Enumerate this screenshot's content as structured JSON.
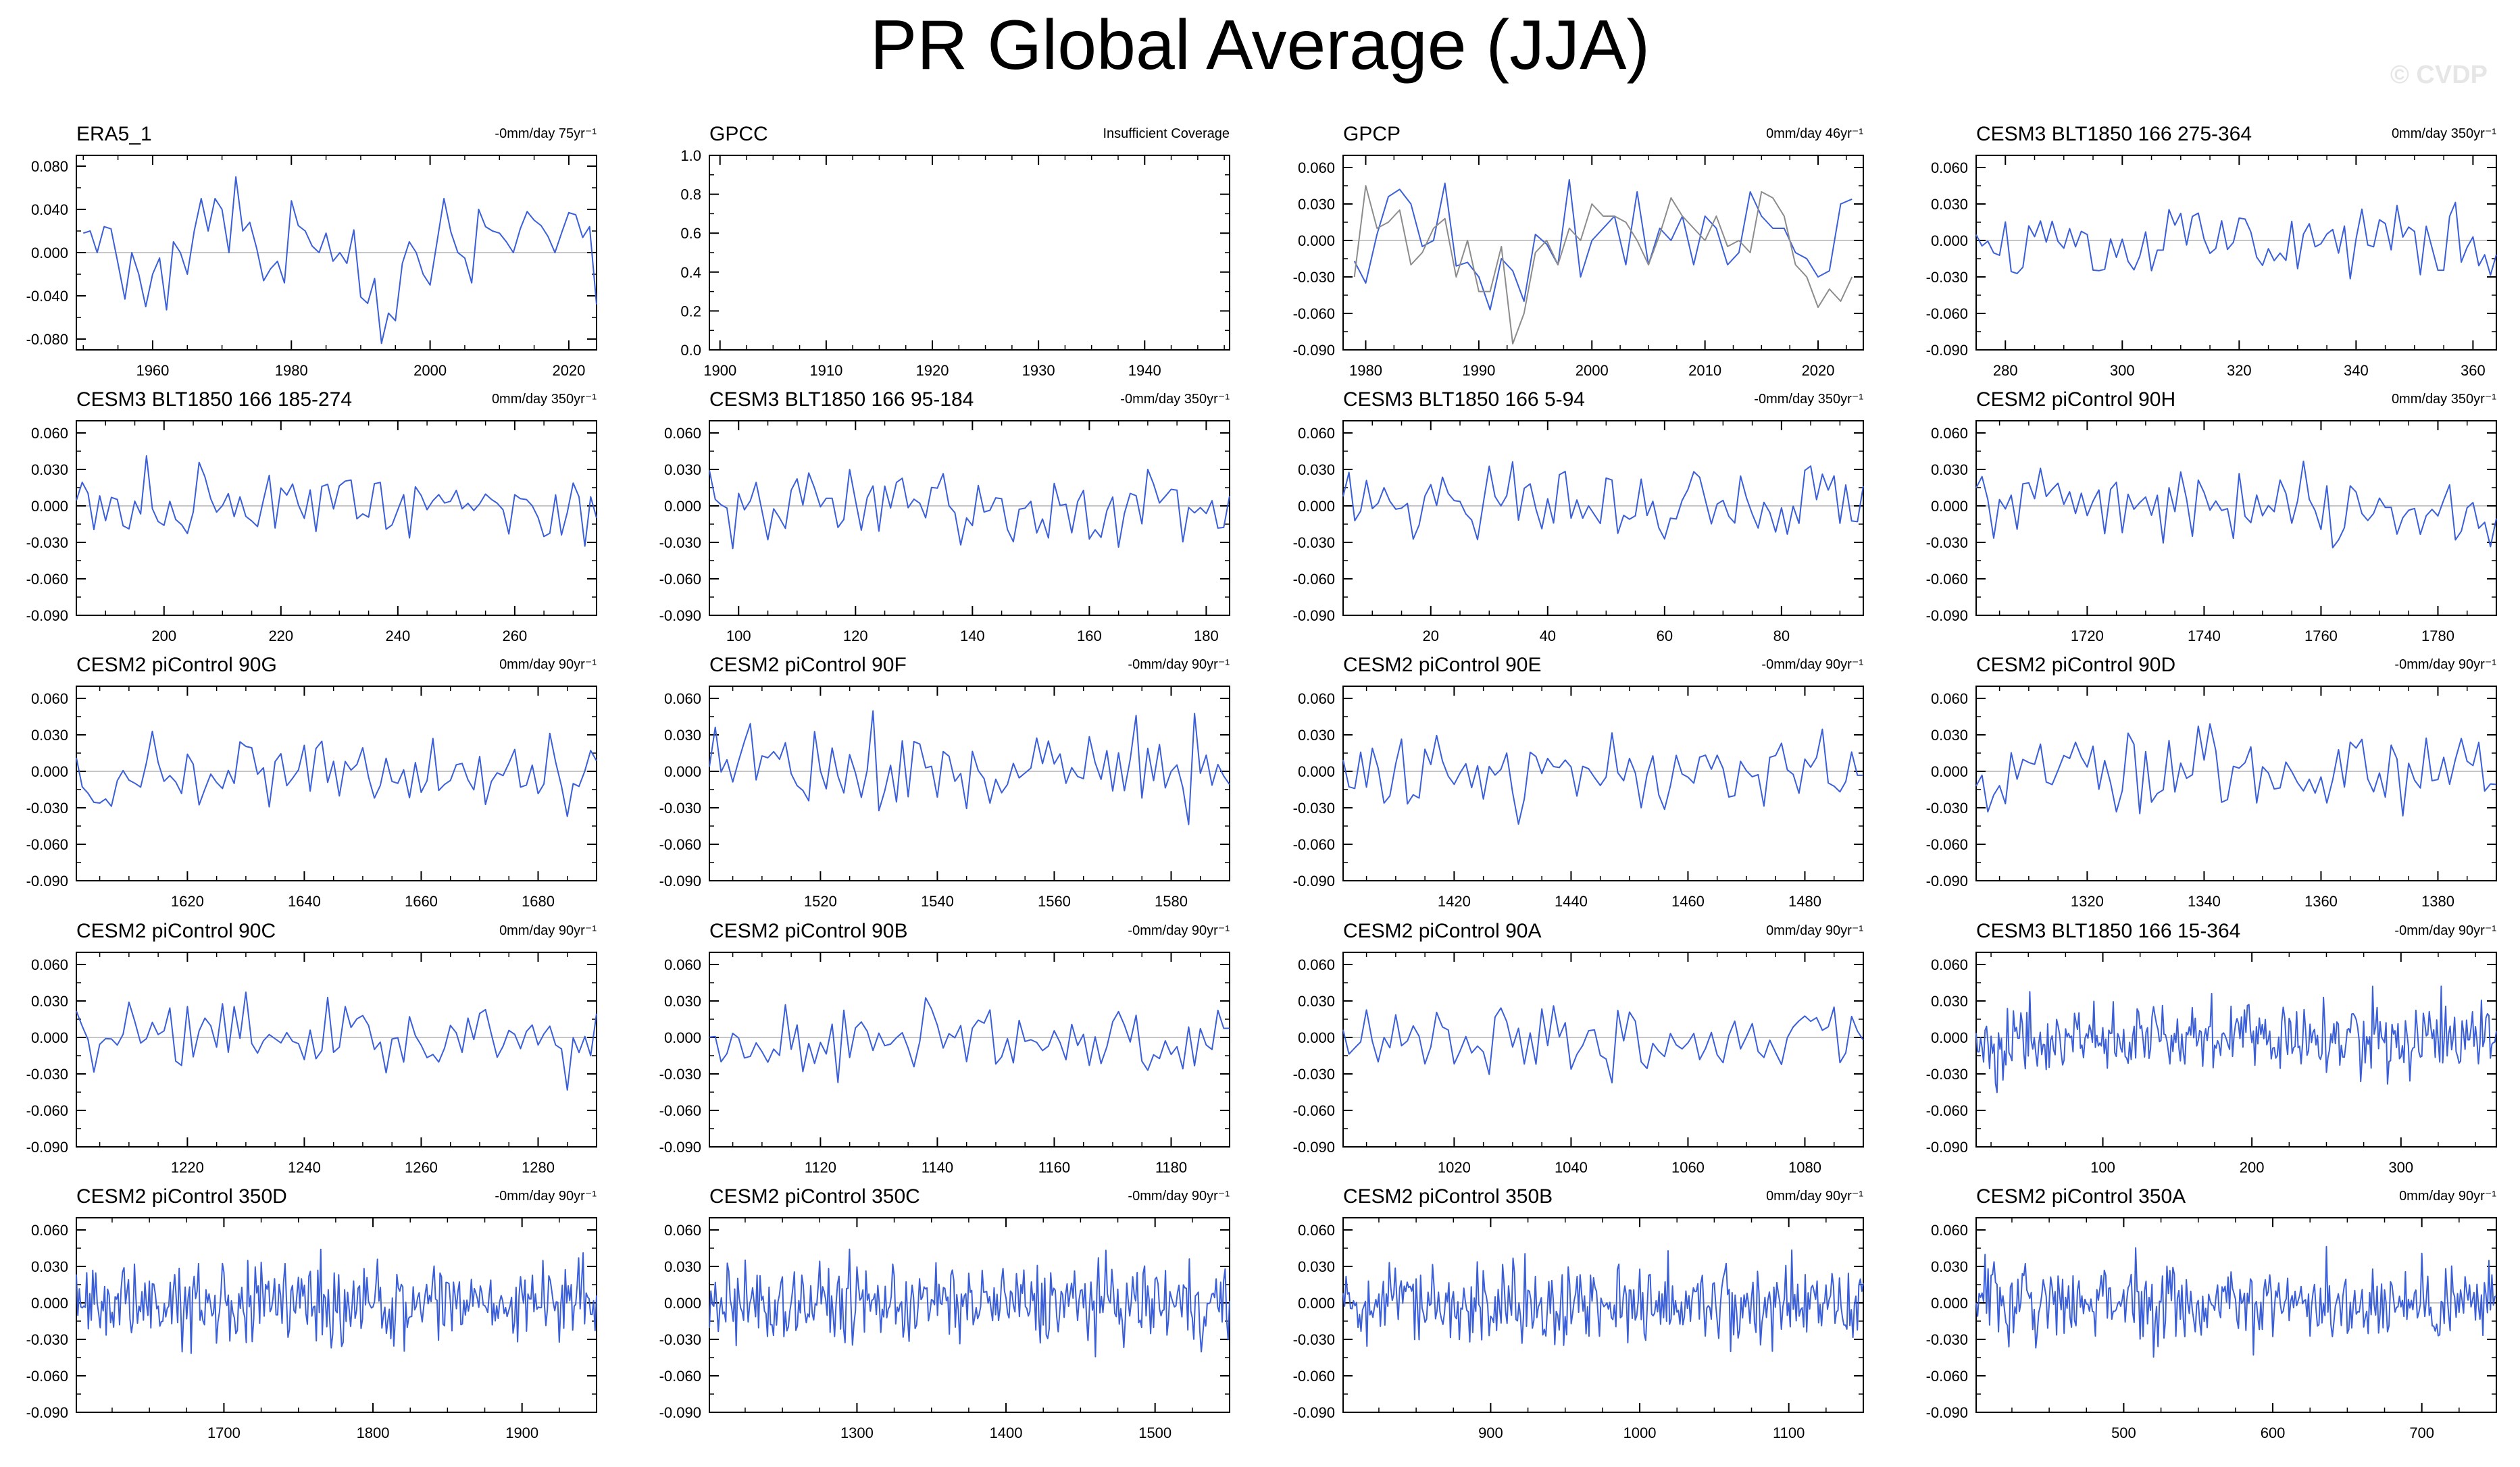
{
  "title": "PR Global Average (JJA)",
  "watermark": "© CVDP",
  "colors": {
    "series": "#3a5fd9",
    "obs2": "#8c8c8c",
    "zero": "#b4b4b4"
  },
  "chart_data": [
    {
      "type": "line",
      "name": "ERA5_1",
      "trend": "-0mm/day 75yr⁻¹",
      "x_range": [
        1949,
        2024
      ],
      "xticks": [
        1960,
        1980,
        2000,
        2020
      ],
      "ylim": [
        -0.09,
        0.09
      ],
      "yticks": [
        -0.08,
        -0.04,
        0.0,
        0.04,
        0.08
      ],
      "ytick_labels": [
        "-0.080",
        "-0.040",
        "0.000",
        "0.040",
        "0.080"
      ],
      "series": [
        {
          "x_start": 1950,
          "x_step": 1,
          "values": [
            0.018,
            0.02,
            0.0,
            0.024,
            0.022,
            -0.01,
            -0.043,
            0.0,
            -0.02,
            -0.05,
            -0.02,
            -0.005,
            -0.053,
            0.01,
            0.0,
            -0.02,
            0.02,
            0.05,
            0.02,
            0.05,
            0.04,
            0.0,
            0.07,
            0.02,
            0.028,
            0.004,
            -0.026,
            -0.015,
            -0.008,
            -0.028,
            0.048,
            0.025,
            0.02,
            0.006,
            0.0,
            0.018,
            -0.008,
            0.0,
            -0.01,
            0.021,
            -0.041,
            -0.047,
            -0.024,
            -0.084,
            -0.056,
            -0.063,
            -0.01,
            0.01,
            0.0,
            -0.02,
            -0.03,
            0.01,
            0.05,
            0.019,
            0.0,
            -0.005,
            -0.028,
            0.04,
            0.024,
            0.02,
            0.018,
            0.01,
            0.0,
            0.022,
            0.038,
            0.03,
            0.025,
            0.015,
            0.0,
            0.019,
            0.037,
            0.035,
            0.014,
            0.024,
            -0.048
          ]
        }
      ]
    },
    {
      "type": "line",
      "name": "GPCC",
      "trend": "Insufficient Coverage",
      "x_range": [
        1899,
        1948
      ],
      "xticks": [
        1900,
        1910,
        1920,
        1930,
        1940
      ],
      "ylim": [
        0,
        1
      ],
      "yticks": [
        0,
        0.2,
        0.4,
        0.6,
        0.8,
        1.0
      ],
      "ytick_labels": [
        "0.0",
        "0.2",
        "0.4",
        "0.6",
        "0.8",
        "1.0"
      ],
      "series": []
    },
    {
      "type": "line",
      "name": "GPCP",
      "trend": "0mm/day 46yr⁻¹",
      "x_range": [
        1978,
        2024
      ],
      "xticks": [
        1980,
        1990,
        2000,
        2010,
        2020
      ],
      "ylim": [
        -0.09,
        0.07
      ],
      "yticks": [
        -0.09,
        -0.06,
        -0.03,
        0.0,
        0.03,
        0.06
      ],
      "ytick_labels": [
        "-0.090",
        "-0.060",
        "-0.030",
        "0.000",
        "0.030",
        "0.060"
      ],
      "series": [
        {
          "x_start": 1979,
          "x_step": 1,
          "values": [
            -0.017,
            -0.035,
            0.005,
            0.036,
            0.042,
            0.03,
            -0.005,
            0.0,
            0.047,
            -0.021,
            -0.018,
            -0.03,
            -0.057,
            -0.015,
            -0.025,
            -0.05,
            0.005,
            -0.003,
            -0.02,
            0.05,
            -0.03,
            0.0,
            0.01,
            0.02,
            -0.02,
            0.04,
            -0.02,
            0.01,
            0.0,
            0.02,
            -0.02,
            0.02,
            0.01,
            -0.02,
            -0.01,
            0.04,
            0.02,
            0.01,
            0.01,
            -0.01,
            -0.015,
            -0.03,
            -0.025,
            0.03,
            0.034
          ]
        },
        {
          "x_start": 1979,
          "x_step": 1,
          "values": [
            -0.03,
            0.045,
            0.01,
            0.015,
            0.025,
            -0.02,
            -0.01,
            0.01,
            0.018,
            -0.03,
            0.0,
            -0.042,
            -0.042,
            -0.005,
            -0.085,
            -0.06,
            -0.01,
            0.0,
            -0.02,
            0.01,
            0.0,
            0.03,
            0.02,
            0.02,
            0.015,
            0.0,
            -0.02,
            0.005,
            0.035,
            0.02,
            0.01,
            0.0,
            0.02,
            -0.005,
            0.0,
            -0.01,
            0.04,
            0.035,
            0.02,
            -0.02,
            -0.03,
            -0.055,
            -0.04,
            -0.05,
            -0.03
          ]
        }
      ]
    },
    {
      "type": "line",
      "name": "CESM3 BLT1850 166 275-364",
      "trend": "0mm/day 350yr⁻¹",
      "x_range": [
        275,
        364
      ],
      "xticks": [
        280,
        300,
        320,
        340,
        360
      ],
      "ylim": [
        -0.09,
        0.07
      ],
      "yticks": [
        -0.09,
        -0.06,
        -0.03,
        0.0,
        0.03,
        0.06
      ],
      "ytick_labels": [
        "-0.090",
        "-0.060",
        "-0.030",
        "0.000",
        "0.030",
        "0.060"
      ],
      "series": [
        {
          "x_start": 275,
          "x_step": 1,
          "n": 90,
          "seed": 4,
          "amp": 0.016
        }
      ]
    },
    {
      "type": "line",
      "name": "CESM3 BLT1850 166 185-274",
      "trend": "0mm/day 350yr⁻¹",
      "x_range": [
        185,
        274
      ],
      "xticks": [
        200,
        220,
        240,
        260
      ],
      "ylim": [
        -0.09,
        0.07
      ],
      "yticks": [
        -0.09,
        -0.06,
        -0.03,
        0.0,
        0.03,
        0.06
      ],
      "ytick_labels": [
        "-0.090",
        "-0.060",
        "-0.030",
        "0.000",
        "0.030",
        "0.060"
      ],
      "series": [
        {
          "x_start": 185,
          "x_step": 1,
          "n": 90,
          "seed": 5,
          "amp": 0.016
        }
      ]
    },
    {
      "type": "line",
      "name": "CESM3 BLT1850 166 95-184",
      "trend": "-0mm/day 350yr⁻¹",
      "x_range": [
        95,
        184
      ],
      "xticks": [
        100,
        120,
        140,
        160,
        180
      ],
      "ylim": [
        -0.09,
        0.07
      ],
      "yticks": [
        -0.09,
        -0.06,
        -0.03,
        0.0,
        0.03,
        0.06
      ],
      "ytick_labels": [
        "-0.090",
        "-0.060",
        "-0.030",
        "0.000",
        "0.030",
        "0.060"
      ],
      "series": [
        {
          "x_start": 95,
          "x_step": 1,
          "n": 90,
          "seed": 6,
          "amp": 0.016
        }
      ]
    },
    {
      "type": "line",
      "name": "CESM3 BLT1850 166 5-94",
      "trend": "-0mm/day 350yr⁻¹",
      "x_range": [
        5,
        94
      ],
      "xticks": [
        20,
        40,
        60,
        80
      ],
      "ylim": [
        -0.09,
        0.07
      ],
      "yticks": [
        -0.09,
        -0.06,
        -0.03,
        0.0,
        0.03,
        0.06
      ],
      "ytick_labels": [
        "-0.090",
        "-0.060",
        "-0.030",
        "0.000",
        "0.030",
        "0.060"
      ],
      "series": [
        {
          "x_start": 5,
          "x_step": 1,
          "n": 90,
          "seed": 7,
          "amp": 0.016
        }
      ]
    },
    {
      "type": "line",
      "name": "CESM2 piControl 90H",
      "trend": "0mm/day 350yr⁻¹",
      "x_range": [
        1701,
        1790
      ],
      "xticks": [
        1720,
        1740,
        1760,
        1780
      ],
      "ylim": [
        -0.09,
        0.07
      ],
      "yticks": [
        -0.09,
        -0.06,
        -0.03,
        0.0,
        0.03,
        0.06
      ],
      "ytick_labels": [
        "-0.090",
        "-0.060",
        "-0.030",
        "0.000",
        "0.030",
        "0.060"
      ],
      "series": [
        {
          "x_start": 1701,
          "x_step": 1,
          "n": 90,
          "seed": 8,
          "amp": 0.017
        }
      ]
    },
    {
      "type": "line",
      "name": "CESM2 piControl 90G",
      "trend": "0mm/day 90yr⁻¹",
      "x_range": [
        1601,
        1690
      ],
      "xticks": [
        1620,
        1640,
        1660,
        1680
      ],
      "ylim": [
        -0.09,
        0.07
      ],
      "yticks": [
        -0.09,
        -0.06,
        -0.03,
        0.0,
        0.03,
        0.06
      ],
      "ytick_labels": [
        "-0.090",
        "-0.060",
        "-0.030",
        "0.000",
        "0.030",
        "0.060"
      ],
      "series": [
        {
          "x_start": 1601,
          "x_step": 1,
          "n": 90,
          "seed": 9,
          "amp": 0.016
        }
      ]
    },
    {
      "type": "line",
      "name": "CESM2 piControl 90F",
      "trend": "-0mm/day 90yr⁻¹",
      "x_range": [
        1501,
        1590
      ],
      "xticks": [
        1520,
        1540,
        1560,
        1580
      ],
      "ylim": [
        -0.09,
        0.07
      ],
      "yticks": [
        -0.09,
        -0.06,
        -0.03,
        0.0,
        0.03,
        0.06
      ],
      "ytick_labels": [
        "-0.090",
        "-0.060",
        "-0.030",
        "0.000",
        "0.030",
        "0.060"
      ],
      "series": [
        {
          "x_start": 1501,
          "x_step": 1,
          "n": 90,
          "seed": 10,
          "amp": 0.017
        }
      ]
    },
    {
      "type": "line",
      "name": "CESM2 piControl 90E",
      "trend": "-0mm/day 90yr⁻¹",
      "x_range": [
        1401,
        1490
      ],
      "xticks": [
        1420,
        1440,
        1460,
        1480
      ],
      "ylim": [
        -0.09,
        0.07
      ],
      "yticks": [
        -0.09,
        -0.06,
        -0.03,
        0.0,
        0.03,
        0.06
      ],
      "ytick_labels": [
        "-0.090",
        "-0.060",
        "-0.030",
        "0.000",
        "0.030",
        "0.060"
      ],
      "series": [
        {
          "x_start": 1401,
          "x_step": 1,
          "n": 90,
          "seed": 11,
          "amp": 0.016
        }
      ]
    },
    {
      "type": "line",
      "name": "CESM2 piControl 90D",
      "trend": "-0mm/day 90yr⁻¹",
      "x_range": [
        1301,
        1390
      ],
      "xticks": [
        1320,
        1340,
        1360,
        1380
      ],
      "ylim": [
        -0.09,
        0.07
      ],
      "yticks": [
        -0.09,
        -0.06,
        -0.03,
        0.0,
        0.03,
        0.06
      ],
      "ytick_labels": [
        "-0.090",
        "-0.060",
        "-0.030",
        "0.000",
        "0.030",
        "0.060"
      ],
      "series": [
        {
          "x_start": 1301,
          "x_step": 1,
          "n": 90,
          "seed": 12,
          "amp": 0.016
        }
      ]
    },
    {
      "type": "line",
      "name": "CESM2 piControl 90C",
      "trend": "0mm/day 90yr⁻¹",
      "x_range": [
        1201,
        1290
      ],
      "xticks": [
        1220,
        1240,
        1260,
        1280
      ],
      "ylim": [
        -0.09,
        0.07
      ],
      "yticks": [
        -0.09,
        -0.06,
        -0.03,
        0.0,
        0.03,
        0.06
      ],
      "ytick_labels": [
        "-0.090",
        "-0.060",
        "-0.030",
        "0.000",
        "0.030",
        "0.060"
      ],
      "series": [
        {
          "x_start": 1201,
          "x_step": 1,
          "n": 90,
          "seed": 13,
          "amp": 0.016
        }
      ]
    },
    {
      "type": "line",
      "name": "CESM2 piControl 90B",
      "trend": "-0mm/day 90yr⁻¹",
      "x_range": [
        1101,
        1190
      ],
      "xticks": [
        1120,
        1140,
        1160,
        1180
      ],
      "ylim": [
        -0.09,
        0.07
      ],
      "yticks": [
        -0.09,
        -0.06,
        -0.03,
        0.0,
        0.03,
        0.06
      ],
      "ytick_labels": [
        "-0.090",
        "-0.060",
        "-0.030",
        "0.000",
        "0.030",
        "0.060"
      ],
      "series": [
        {
          "x_start": 1101,
          "x_step": 1,
          "n": 90,
          "seed": 14,
          "amp": 0.016
        }
      ]
    },
    {
      "type": "line",
      "name": "CESM2 piControl 90A",
      "trend": "0mm/day 90yr⁻¹",
      "x_range": [
        1001,
        1090
      ],
      "xticks": [
        1020,
        1040,
        1060,
        1080
      ],
      "ylim": [
        -0.09,
        0.07
      ],
      "yticks": [
        -0.09,
        -0.06,
        -0.03,
        0.0,
        0.03,
        0.06
      ],
      "ytick_labels": [
        "-0.090",
        "-0.060",
        "-0.030",
        "0.000",
        "0.030",
        "0.060"
      ],
      "series": [
        {
          "x_start": 1001,
          "x_step": 1,
          "n": 90,
          "seed": 15,
          "amp": 0.016
        }
      ]
    },
    {
      "type": "line",
      "name": "CESM3 BLT1850 166 15-364",
      "trend": "-0mm/day 90yr⁻¹",
      "x_range": [
        15,
        364
      ],
      "xticks": [
        100,
        200,
        300
      ],
      "ylim": [
        -0.09,
        0.07
      ],
      "yticks": [
        -0.09,
        -0.06,
        -0.03,
        0.0,
        0.03,
        0.06
      ],
      "ytick_labels": [
        "-0.090",
        "-0.060",
        "-0.030",
        "0.000",
        "0.030",
        "0.060"
      ],
      "series": [
        {
          "x_start": 15,
          "x_step": 1,
          "n": 350,
          "seed": 16,
          "amp": 0.016
        }
      ]
    },
    {
      "type": "line",
      "name": "CESM2 piControl 350D",
      "trend": "-0mm/day 90yr⁻¹",
      "x_range": [
        1601,
        1950
      ],
      "xticks": [
        1700,
        1800,
        1900
      ],
      "ylim": [
        -0.09,
        0.07
      ],
      "yticks": [
        -0.09,
        -0.06,
        -0.03,
        0.0,
        0.03,
        0.06
      ],
      "ytick_labels": [
        "-0.090",
        "-0.060",
        "-0.030",
        "0.000",
        "0.030",
        "0.060"
      ],
      "series": [
        {
          "x_start": 1601,
          "x_step": 1,
          "n": 350,
          "seed": 17,
          "amp": 0.016
        }
      ]
    },
    {
      "type": "line",
      "name": "CESM2 piControl 350C",
      "trend": "-0mm/day 90yr⁻¹",
      "x_range": [
        1201,
        1550
      ],
      "xticks": [
        1300,
        1400,
        1500
      ],
      "ylim": [
        -0.09,
        0.07
      ],
      "yticks": [
        -0.09,
        -0.06,
        -0.03,
        0.0,
        0.03,
        0.06
      ],
      "ytick_labels": [
        "-0.090",
        "-0.060",
        "-0.030",
        "0.000",
        "0.030",
        "0.060"
      ],
      "series": [
        {
          "x_start": 1201,
          "x_step": 1,
          "n": 350,
          "seed": 18,
          "amp": 0.016
        }
      ]
    },
    {
      "type": "line",
      "name": "CESM2 piControl 350B",
      "trend": "0mm/day 90yr⁻¹",
      "x_range": [
        801,
        1150
      ],
      "xticks": [
        900,
        1000,
        1100
      ],
      "ylim": [
        -0.09,
        0.07
      ],
      "yticks": [
        -0.09,
        -0.06,
        -0.03,
        0.0,
        0.03,
        0.06
      ],
      "ytick_labels": [
        "-0.090",
        "-0.060",
        "-0.030",
        "0.000",
        "0.030",
        "0.060"
      ],
      "series": [
        {
          "x_start": 801,
          "x_step": 1,
          "n": 350,
          "seed": 19,
          "amp": 0.016
        }
      ]
    },
    {
      "type": "line",
      "name": "CESM2 piControl 350A",
      "trend": "0mm/day 90yr⁻¹",
      "x_range": [
        401,
        750
      ],
      "xticks": [
        500,
        600,
        700
      ],
      "ylim": [
        -0.09,
        0.07
      ],
      "yticks": [
        -0.09,
        -0.06,
        -0.03,
        0.0,
        0.03,
        0.06
      ],
      "ytick_labels": [
        "-0.090",
        "-0.060",
        "-0.030",
        "0.000",
        "0.030",
        "0.060"
      ],
      "series": [
        {
          "x_start": 401,
          "x_step": 1,
          "n": 350,
          "seed": 20,
          "amp": 0.016
        }
      ]
    }
  ]
}
